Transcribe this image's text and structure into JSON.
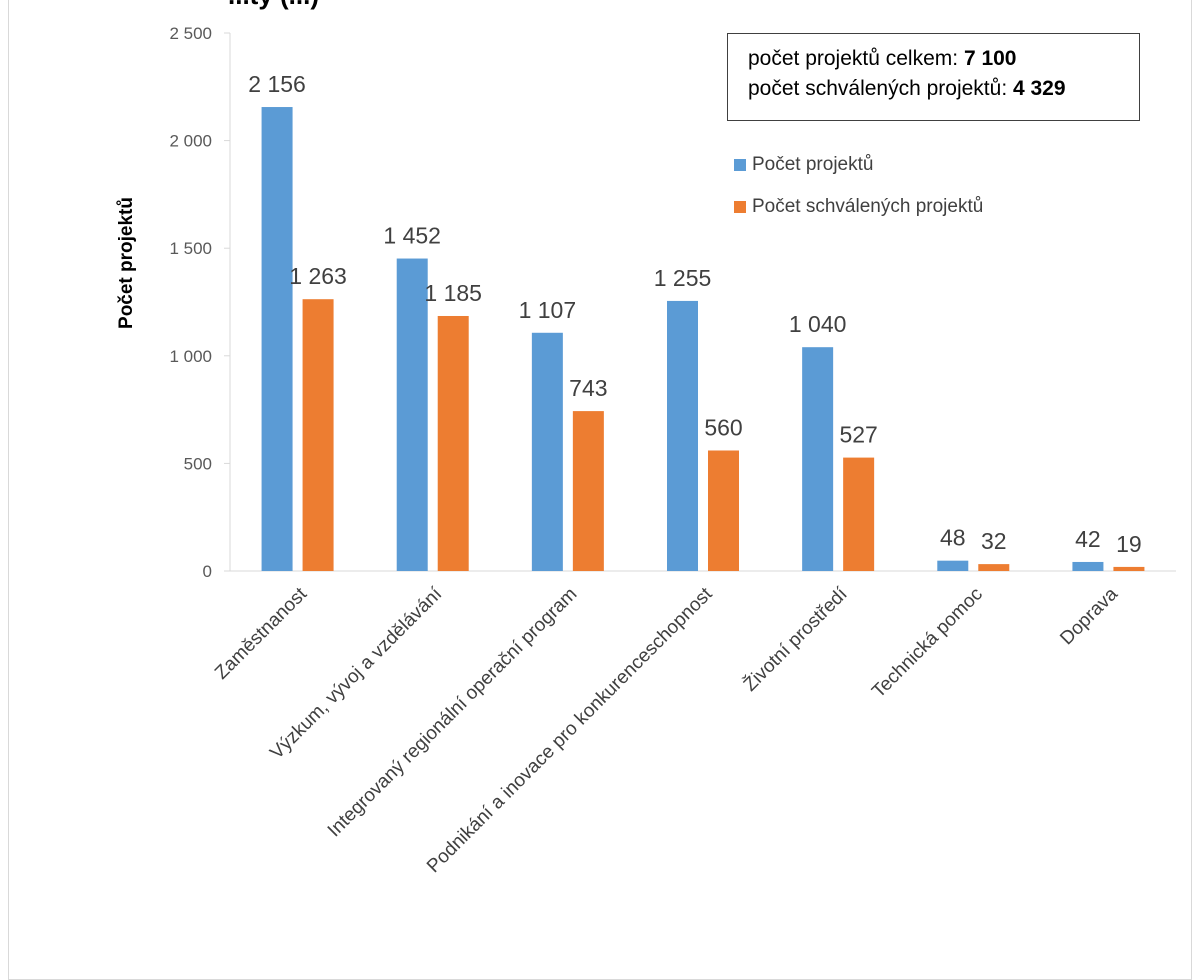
{
  "chart_data": {
    "type": "bar",
    "title": "...ty (...)",
    "ylabel": "Počet projektů",
    "xlabel": "",
    "ylim": [
      0,
      2500
    ],
    "yticks": [
      0,
      500,
      1000,
      1500,
      2000,
      2500
    ],
    "ytick_labels": [
      "0",
      "500",
      "1 000",
      "1 500",
      "2 000",
      "2 500"
    ],
    "categories": [
      "Zaměstnanost",
      "Výzkum, vývoj a vzdělávání",
      "Integrovaný regionální operační program",
      "Podnikání a inovace pro konkurenceschopnost",
      "Životní prostředí",
      "Technická pomoc",
      "Doprava"
    ],
    "series": [
      {
        "name": "Počet projektů",
        "color": "#5b9bd5",
        "values": [
          2156,
          1452,
          1107,
          1255,
          1040,
          48,
          42
        ],
        "labels": [
          "2 156",
          "1 452",
          "1 107",
          "1 255",
          "1 040",
          "48",
          "42"
        ]
      },
      {
        "name": "Počet schválených projektů",
        "color": "#ed7d31",
        "values": [
          1263,
          1185,
          743,
          560,
          527,
          32,
          19
        ],
        "labels": [
          "1 263",
          "1 185",
          "743",
          "560",
          "527",
          "32",
          "19"
        ]
      }
    ],
    "legend_position": "top-right",
    "grid": false
  },
  "info_box": {
    "line1_label": "počet projektů celkem: ",
    "line1_value": "7 100",
    "line2_label": "počet schválených projektů: ",
    "line2_value": "4 329"
  }
}
